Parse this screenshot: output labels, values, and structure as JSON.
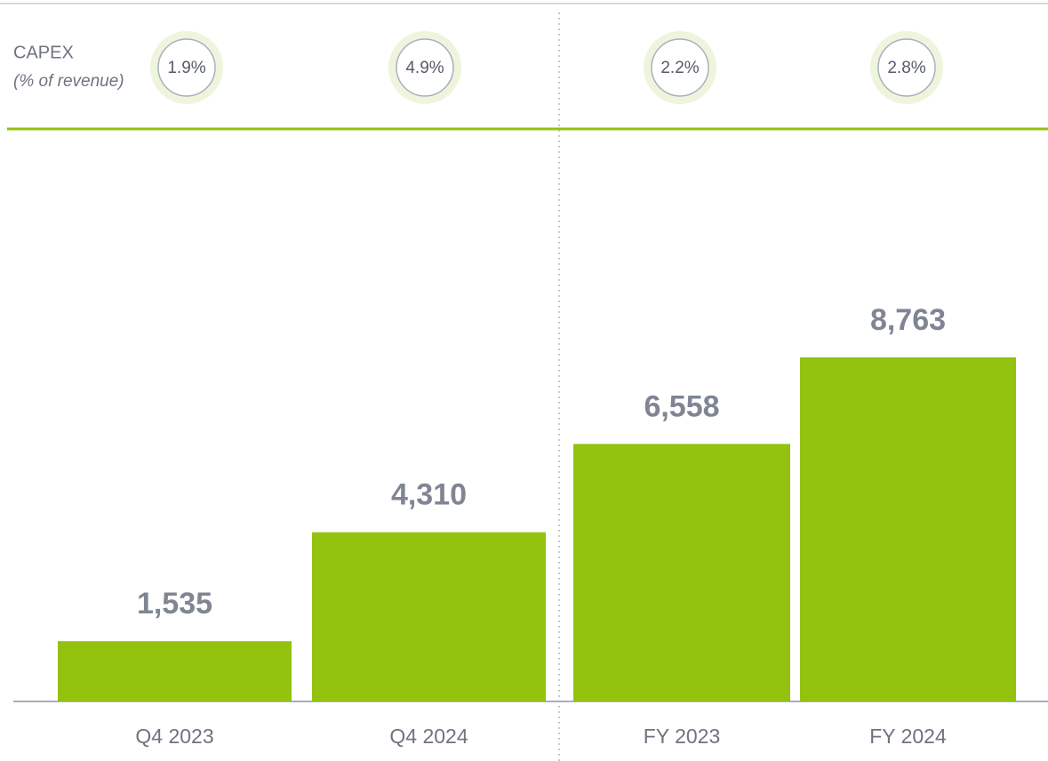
{
  "chart_data": {
    "type": "bar",
    "categories": [
      "Q4 2023",
      "Q4 2024",
      "FY 2023",
      "FY 2024"
    ],
    "values": [
      1535,
      4310,
      6558,
      8763
    ],
    "value_labels": [
      "1,535",
      "4,310",
      "6,558",
      "8,763"
    ],
    "color": "#93c20f",
    "capex_ratio": {
      "label": "CAPEX",
      "sublabel": "(% of revenue)",
      "values": [
        1.9,
        4.9,
        2.2,
        2.8
      ],
      "value_labels": [
        "1.9%",
        "4.9%",
        "2.2%",
        "2.8%"
      ]
    }
  }
}
